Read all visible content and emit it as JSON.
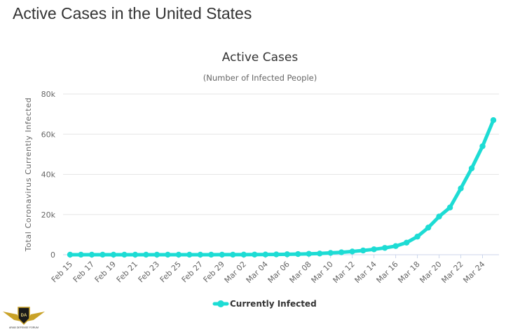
{
  "page": {
    "heading": "Active Cases in the United States"
  },
  "chart_data": {
    "type": "line",
    "title": "Active Cases",
    "subtitle": "(Number of Infected People)",
    "xlabel": "",
    "ylabel": "Total Coronavirus Currently Infected",
    "ylim": [
      0,
      80000
    ],
    "y_ticks": [
      0,
      20000,
      40000,
      60000,
      80000
    ],
    "y_tick_labels": [
      "0",
      "20k",
      "40k",
      "60k",
      "80k"
    ],
    "x": [
      "Feb 15",
      "Feb 16",
      "Feb 17",
      "Feb 18",
      "Feb 19",
      "Feb 20",
      "Feb 21",
      "Feb 22",
      "Feb 23",
      "Feb 24",
      "Feb 25",
      "Feb 26",
      "Feb 27",
      "Feb 28",
      "Feb 29",
      "Mar 01",
      "Mar 02",
      "Mar 03",
      "Mar 04",
      "Mar 05",
      "Mar 06",
      "Mar 07",
      "Mar 08",
      "Mar 09",
      "Mar 10",
      "Mar 11",
      "Mar 12",
      "Mar 13",
      "Mar 14",
      "Mar 15",
      "Mar 16",
      "Mar 17",
      "Mar 18",
      "Mar 19",
      "Mar 20",
      "Mar 21",
      "Mar 22",
      "Mar 23",
      "Mar 24",
      "Mar 25"
    ],
    "x_tick_labels": [
      "Feb 15",
      "Feb 17",
      "Feb 19",
      "Feb 21",
      "Feb 23",
      "Feb 25",
      "Feb 27",
      "Feb 29",
      "Mar 02",
      "Mar 04",
      "Mar 06",
      "Mar 08",
      "Mar 10",
      "Mar 12",
      "Mar 14",
      "Mar 16",
      "Mar 18",
      "Mar 20",
      "Mar 22",
      "Mar 24"
    ],
    "series": [
      {
        "name": "Currently Infected",
        "color": "#1ddcd4",
        "values": [
          12,
          12,
          12,
          12,
          12,
          12,
          12,
          12,
          12,
          12,
          12,
          12,
          15,
          16,
          20,
          30,
          50,
          80,
          110,
          150,
          220,
          320,
          450,
          600,
          900,
          1200,
          1600,
          2100,
          2700,
          3400,
          4300,
          6000,
          9000,
          13500,
          19000,
          23500,
          33000,
          43000,
          54000,
          67000
        ]
      }
    ],
    "grid": true,
    "legend": "bottom-center"
  },
  "logo": {
    "lines": [
      "DA",
      "ARAB DEFENSE FORUM"
    ]
  }
}
